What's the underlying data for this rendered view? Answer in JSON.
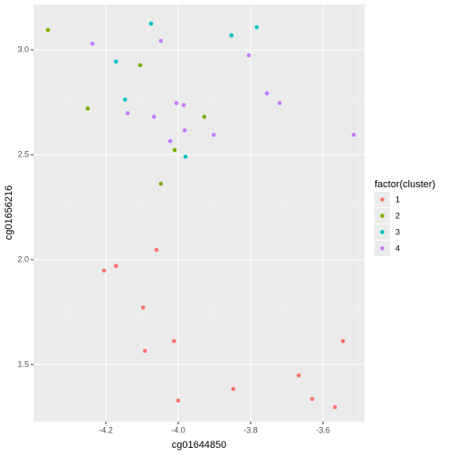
{
  "chart_data": {
    "type": "scatter",
    "xlabel": "cg01644850",
    "ylabel": "cg01656216",
    "legend_title": "factor(cluster)",
    "xlim": [
      -4.4,
      -3.485
    ],
    "ylim": [
      1.228,
      3.216
    ],
    "xticks": [
      -4.2,
      {
        "value": -4,
        "label": "-4.0"
      },
      -3.8,
      -3.6
    ],
    "yticks": [
      1.5,
      {
        "value": 2,
        "label": "2.0"
      },
      2.5,
      {
        "value": 3,
        "label": "3.0"
      }
    ],
    "grid": true,
    "legend": "right",
    "series": [
      {
        "name": "1",
        "color": "#F8766D",
        "x": [
          -4.06,
          -4.172,
          -4.205,
          -4.097,
          -4.092,
          -4.012,
          -4.0,
          -3.848,
          -3.667,
          -3.63,
          -3.567,
          -3.545
        ],
        "y": [
          2.047,
          1.97,
          1.948,
          1.772,
          1.565,
          1.612,
          1.328,
          1.384,
          1.448,
          1.336,
          1.297,
          1.612
        ]
      },
      {
        "name": "2",
        "color": "#7CAE00",
        "x": [
          -4.36,
          -4.25,
          -4.105,
          -3.928,
          -4.01,
          -4.048
        ],
        "y": [
          3.095,
          2.72,
          2.927,
          2.681,
          2.522,
          2.362
        ]
      },
      {
        "name": "3",
        "color": "#00BFC4",
        "x": [
          -4.075,
          -4.172,
          -4.147,
          -3.98,
          -3.853,
          -3.783
        ],
        "y": [
          3.125,
          2.944,
          2.763,
          2.491,
          3.069,
          3.108
        ]
      },
      {
        "name": "4",
        "color": "#C77CFF",
        "x": [
          -4.237,
          -4.048,
          -4.14,
          -4.067,
          -4.005,
          -3.985,
          -3.982,
          -4.022,
          -3.902,
          -3.805,
          -3.755,
          -3.72,
          -3.515
        ],
        "y": [
          3.03,
          3.043,
          2.698,
          2.681,
          2.746,
          2.737,
          2.616,
          2.565,
          2.595,
          2.974,
          2.793,
          2.746,
          2.595
        ]
      }
    ]
  }
}
